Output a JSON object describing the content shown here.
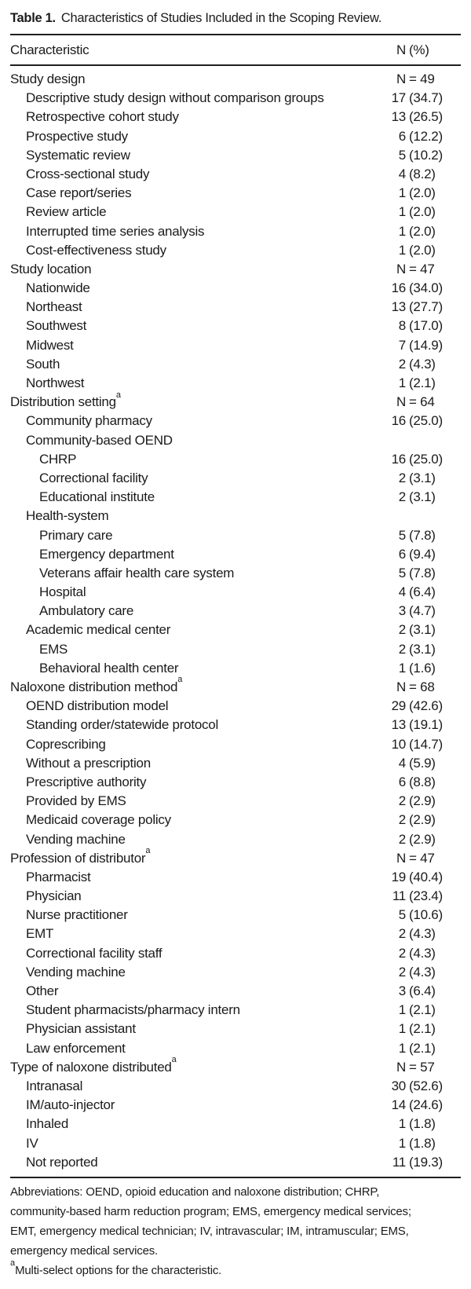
{
  "table": {
    "title": {
      "label": "Table 1.",
      "text": "Characteristics of Studies Included in the Scoping Review."
    },
    "header": {
      "characteristic": "Characteristic",
      "n": "N",
      "tail": "(%)"
    },
    "rows": [
      {
        "label": "Study design",
        "indent": 0,
        "section": true,
        "num": "N",
        "tail": "= 49"
      },
      {
        "label": "Descriptive study design without comparison groups",
        "indent": 1,
        "num": "17",
        "tail": "(34.7)"
      },
      {
        "label": "Retrospective cohort study",
        "indent": 1,
        "num": "13",
        "tail": "(26.5)"
      },
      {
        "label": "Prospective study",
        "indent": 1,
        "num": "6",
        "tail": "(12.2)"
      },
      {
        "label": "Systematic review",
        "indent": 1,
        "num": "5",
        "tail": "(10.2)"
      },
      {
        "label": "Cross-sectional study",
        "indent": 1,
        "num": "4",
        "tail": "(8.2)"
      },
      {
        "label": "Case report/series",
        "indent": 1,
        "num": "1",
        "tail": "(2.0)"
      },
      {
        "label": "Review article",
        "indent": 1,
        "num": "1",
        "tail": "(2.0)"
      },
      {
        "label": "Interrupted time series analysis",
        "indent": 1,
        "num": "1",
        "tail": "(2.0)"
      },
      {
        "label": "Cost-effectiveness study",
        "indent": 1,
        "num": "1",
        "tail": "(2.0)"
      },
      {
        "label": "Study location",
        "indent": 0,
        "section": true,
        "num": "N",
        "tail": "= 47"
      },
      {
        "label": "Nationwide",
        "indent": 1,
        "num": "16",
        "tail": "(34.0)"
      },
      {
        "label": "Northeast",
        "indent": 1,
        "num": "13",
        "tail": "(27.7)"
      },
      {
        "label": "Southwest",
        "indent": 1,
        "num": "8",
        "tail": "(17.0)"
      },
      {
        "label": "Midwest",
        "indent": 1,
        "num": "7",
        "tail": "(14.9)"
      },
      {
        "label": "South",
        "indent": 1,
        "num": "2",
        "tail": "(4.3)"
      },
      {
        "label": "Northwest",
        "indent": 1,
        "num": "1",
        "tail": "(2.1)"
      },
      {
        "label": "Distribution setting",
        "sup": "a",
        "indent": 0,
        "section": true,
        "num": "N",
        "tail": "= 64"
      },
      {
        "label": "Community pharmacy",
        "indent": 1,
        "num": "16",
        "tail": "(25.0)"
      },
      {
        "label": "Community-based OEND",
        "indent": 1,
        "num": "",
        "tail": ""
      },
      {
        "label": "CHRP",
        "indent": 2,
        "num": "16",
        "tail": "(25.0)"
      },
      {
        "label": "Correctional facility",
        "indent": 2,
        "num": "2",
        "tail": "(3.1)"
      },
      {
        "label": "Educational institute",
        "indent": 2,
        "num": "2",
        "tail": "(3.1)"
      },
      {
        "label": "Health-system",
        "indent": 1,
        "num": "",
        "tail": ""
      },
      {
        "label": "Primary care",
        "indent": 2,
        "num": "5",
        "tail": "(7.8)"
      },
      {
        "label": "Emergency department",
        "indent": 2,
        "num": "6",
        "tail": "(9.4)"
      },
      {
        "label": "Veterans affair health care system",
        "indent": 2,
        "num": "5",
        "tail": "(7.8)"
      },
      {
        "label": "Hospital",
        "indent": 2,
        "num": "4",
        "tail": "(6.4)"
      },
      {
        "label": "Ambulatory care",
        "indent": 2,
        "num": "3",
        "tail": "(4.7)"
      },
      {
        "label": "Academic medical center",
        "indent": 1,
        "num": "2",
        "tail": "(3.1)"
      },
      {
        "label": "EMS",
        "indent": 2,
        "num": "2",
        "tail": "(3.1)"
      },
      {
        "label": "Behavioral health center",
        "indent": 2,
        "num": "1",
        "tail": "(1.6)"
      },
      {
        "label": "Naloxone distribution method",
        "sup": "a",
        "indent": 0,
        "section": true,
        "num": "N",
        "tail": "= 68"
      },
      {
        "label": "OEND distribution model",
        "indent": 1,
        "num": "29",
        "tail": "(42.6)"
      },
      {
        "label": "Standing order/statewide protocol",
        "indent": 1,
        "num": "13",
        "tail": "(19.1)"
      },
      {
        "label": "Coprescribing",
        "indent": 1,
        "num": "10",
        "tail": "(14.7)"
      },
      {
        "label": "Without a prescription",
        "indent": 1,
        "num": "4",
        "tail": "(5.9)"
      },
      {
        "label": "Prescriptive authority",
        "indent": 1,
        "num": "6",
        "tail": "(8.8)"
      },
      {
        "label": "Provided by EMS",
        "indent": 1,
        "num": "2",
        "tail": "(2.9)"
      },
      {
        "label": "Medicaid coverage policy",
        "indent": 1,
        "num": "2",
        "tail": "(2.9)"
      },
      {
        "label": "Vending machine",
        "indent": 1,
        "num": "2",
        "tail": "(2.9)"
      },
      {
        "label": "Profession of distributor",
        "sup": "a",
        "indent": 0,
        "section": true,
        "num": "N",
        "tail": "= 47"
      },
      {
        "label": "Pharmacist",
        "indent": 1,
        "num": "19",
        "tail": "(40.4)"
      },
      {
        "label": "Physician",
        "indent": 1,
        "num": "11",
        "tail": "(23.4)"
      },
      {
        "label": "Nurse practitioner",
        "indent": 1,
        "num": "5",
        "tail": "(10.6)"
      },
      {
        "label": "EMT",
        "indent": 1,
        "num": "2",
        "tail": "(4.3)"
      },
      {
        "label": "Correctional facility staff",
        "indent": 1,
        "num": "2",
        "tail": "(4.3)"
      },
      {
        "label": "Vending machine",
        "indent": 1,
        "num": "2",
        "tail": "(4.3)"
      },
      {
        "label": "Other",
        "indent": 1,
        "num": "3",
        "tail": "(6.4)"
      },
      {
        "label": "Student pharmacists/pharmacy intern",
        "indent": 1,
        "num": "1",
        "tail": "(2.1)"
      },
      {
        "label": "Physician assistant",
        "indent": 1,
        "num": "1",
        "tail": "(2.1)"
      },
      {
        "label": "Law enforcement",
        "indent": 1,
        "num": "1",
        "tail": "(2.1)"
      },
      {
        "label": "Type of naloxone distributed",
        "sup": "a",
        "indent": 0,
        "section": true,
        "num": "N",
        "tail": "= 57"
      },
      {
        "label": "Intranasal",
        "indent": 1,
        "num": "30",
        "tail": "(52.6)"
      },
      {
        "label": "IM/auto-injector",
        "indent": 1,
        "num": "14",
        "tail": "(24.6)"
      },
      {
        "label": "Inhaled",
        "indent": 1,
        "num": "1",
        "tail": "(1.8)"
      },
      {
        "label": "IV",
        "indent": 1,
        "num": "1",
        "tail": "(1.8)"
      },
      {
        "label": "Not reported",
        "indent": 1,
        "num": "11",
        "tail": "(19.3)"
      }
    ],
    "footnotes": {
      "abbrev_lines": [
        "Abbreviations: OEND, opioid education and naloxone distribution; CHRP,",
        "community-based harm reduction program; EMS, emergency medical services;",
        "EMT, emergency medical technician; IV, intravascular; IM, intramuscular; EMS,",
        "emergency medical services."
      ],
      "marker": "a",
      "marker_text": "Multi-select options for the characteristic."
    }
  }
}
